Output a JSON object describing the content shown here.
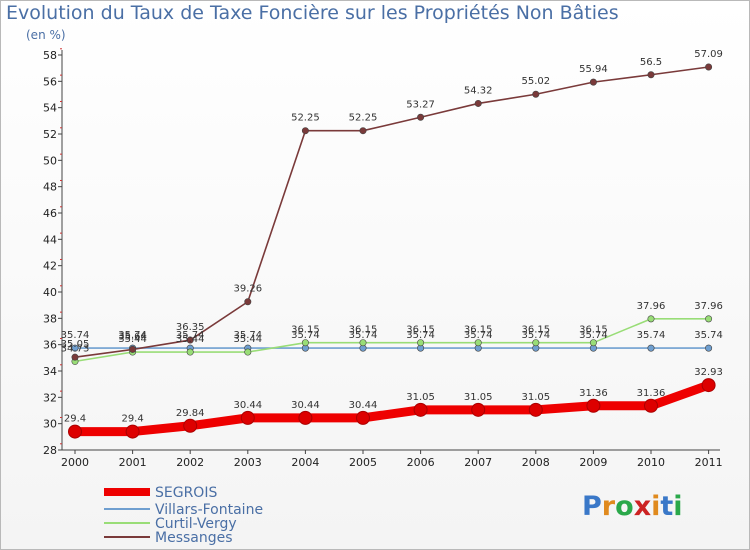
{
  "chart_data": {
    "type": "line",
    "title": "Evolution du Taux de Taxe Foncière sur les Propriétés Non Bâties",
    "ylabel": "(en %)",
    "xlabel": "",
    "x": [
      "2000",
      "2001",
      "2002",
      "2003",
      "2004",
      "2005",
      "2006",
      "2007",
      "2008",
      "2009",
      "2010",
      "2011"
    ],
    "ylim": [
      28,
      58
    ],
    "yticks": [
      28,
      30,
      32,
      34,
      36,
      38,
      40,
      42,
      44,
      46,
      48,
      50,
      52,
      54,
      56,
      58
    ],
    "grid": false,
    "legend_position": "bottom-left",
    "series": [
      {
        "name": "SEGROIS",
        "color": "#ee0000",
        "values": [
          29.4,
          29.4,
          29.84,
          30.44,
          30.44,
          30.44,
          31.05,
          31.05,
          31.05,
          31.36,
          31.36,
          32.93
        ],
        "labels": [
          "29.4",
          "29.4",
          "29.84",
          "30.44",
          "30.44",
          "30.44",
          "31.05",
          "31.05",
          "31.05",
          "31.36",
          "31.36",
          "32.93"
        ]
      },
      {
        "name": "Villars-Fontaine",
        "color": "#6f9fd0",
        "values": [
          35.74,
          35.74,
          35.74,
          35.74,
          35.74,
          35.74,
          35.74,
          35.74,
          35.74,
          35.74,
          35.74,
          35.74
        ],
        "labels": [
          "35.74",
          "35.74",
          "35.74",
          "35.74",
          "35.74",
          "35.74",
          "35.74",
          "35.74",
          "35.74",
          "35.74",
          "35.74",
          "35.74"
        ]
      },
      {
        "name": "Curtil-Vergy",
        "color": "#99dd77",
        "values": [
          34.73,
          35.44,
          35.44,
          35.44,
          36.15,
          36.15,
          36.15,
          36.15,
          36.15,
          36.15,
          37.96,
          37.96
        ],
        "labels": [
          "34.73",
          "35.44",
          "35.44",
          "35.44",
          "36.15",
          "36.15",
          "36.15",
          "36.15",
          "36.15",
          "36.15",
          "37.96",
          "37.96"
        ]
      },
      {
        "name": "Messanges",
        "color": "#7a3a3a",
        "values": [
          35.05,
          35.64,
          36.35,
          39.26,
          52.25,
          52.25,
          53.27,
          54.32,
          55.02,
          55.94,
          56.5,
          57.09
        ],
        "labels": [
          "35.05",
          "35.64",
          "36.35",
          "39.26",
          "52.25",
          "52.25",
          "53.27",
          "54.32",
          "55.02",
          "55.94",
          "56.5",
          "57.09"
        ]
      }
    ]
  },
  "logo": {
    "text": "Proxiti",
    "letter_colors": [
      "#3a78c8",
      "#e08a1e",
      "#2aa84a",
      "#cc2222",
      "#e08a1e",
      "#3a78c8",
      "#2aa84a"
    ]
  }
}
